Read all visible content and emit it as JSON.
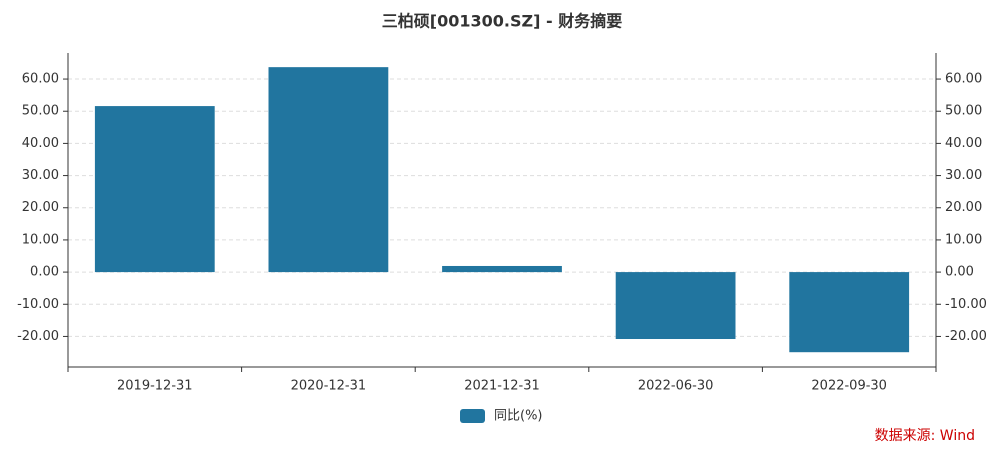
{
  "chart_data": {
    "type": "bar",
    "title": "三柏硕[001300.SZ] - 财务摘要",
    "categories": [
      "2019-12-31",
      "2020-12-31",
      "2021-12-31",
      "2022-06-30",
      "2022-09-30"
    ],
    "series": [
      {
        "name": "同比(%)",
        "color": "#21759f",
        "values": [
          51.6,
          63.7,
          1.9,
          -20.8,
          -24.9
        ]
      }
    ],
    "ylim": [
      -29.5,
      68.1
    ],
    "yticks": [
      {
        "value": -20,
        "label": "-20.00"
      },
      {
        "value": -10,
        "label": "-10.00"
      },
      {
        "value": 0,
        "label": "0.00"
      },
      {
        "value": 10,
        "label": "10.00"
      },
      {
        "value": 20,
        "label": "20.00"
      },
      {
        "value": 30,
        "label": "30.00"
      },
      {
        "value": 40,
        "label": "40.00"
      },
      {
        "value": 50,
        "label": "50.00"
      },
      {
        "value": 60,
        "label": "60.00"
      }
    ],
    "y2lim": [
      -29.5,
      68.1
    ],
    "y2ticks": [
      {
        "value": -20,
        "label": "-20.00"
      },
      {
        "value": -10,
        "label": "-10.00"
      },
      {
        "value": 0,
        "label": "0.00"
      },
      {
        "value": 10,
        "label": "10.00"
      },
      {
        "value": 20,
        "label": "20.00"
      },
      {
        "value": 30,
        "label": "30.00"
      },
      {
        "value": 40,
        "label": "40.00"
      },
      {
        "value": 50,
        "label": "50.00"
      },
      {
        "value": 60,
        "label": "60.00"
      }
    ],
    "grid": true,
    "legend": "bottom",
    "source": "数据来源: Wind"
  }
}
